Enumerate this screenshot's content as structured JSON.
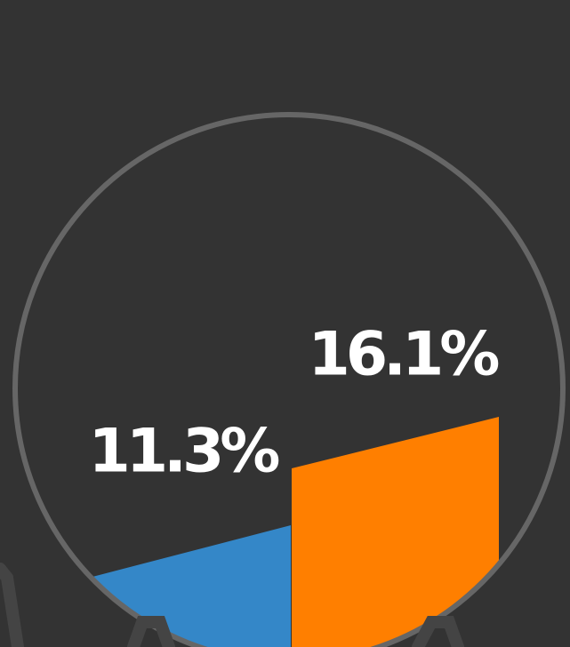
{
  "chart_data": {
    "type": "bar",
    "categories": [
      null,
      null
    ],
    "values": [
      11.3,
      16.1
    ],
    "value_labels": [
      "11.3%",
      "16.1%"
    ],
    "colors": [
      "#3487c8",
      "#ff7f00"
    ]
  }
}
